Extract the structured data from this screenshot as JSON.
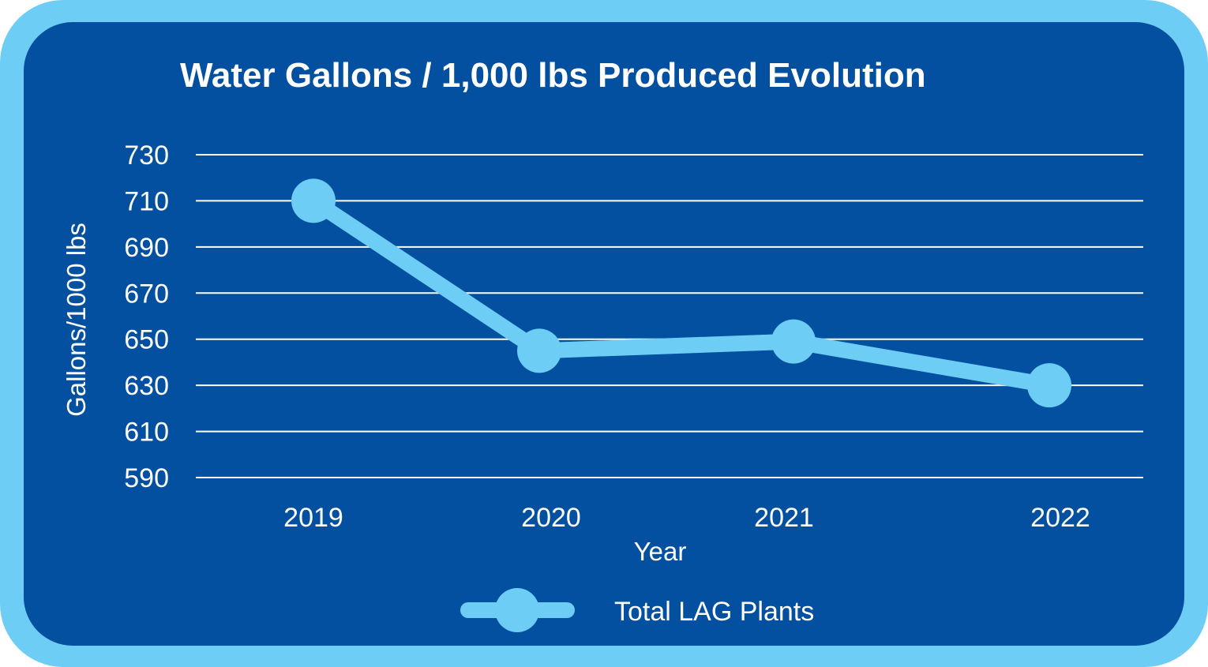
{
  "colors": {
    "frame": "#6dcdf4",
    "panel": "#02509f",
    "series": "#6dcdf4",
    "grid": "#ffffff",
    "text": "#ffffff"
  },
  "chart_data": {
    "type": "line",
    "title": "Water Gallons / 1,000 lbs Produced Evolution",
    "xlabel": "Year",
    "ylabel": "Gallons/1000 lbs",
    "categories": [
      "2019",
      "2020",
      "2021",
      "2022"
    ],
    "series": [
      {
        "name": "Total LAG Plants",
        "values": [
          710,
          645,
          649,
          630
        ]
      }
    ],
    "ylim": [
      590,
      730
    ],
    "yticks": [
      "590",
      "610",
      "630",
      "650",
      "670",
      "690",
      "710",
      "730"
    ],
    "grid": true,
    "legend_position": "bottom"
  }
}
